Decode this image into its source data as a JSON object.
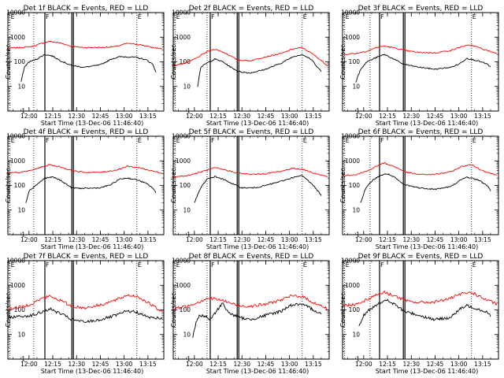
{
  "chart_data": {
    "type": "line",
    "y_scale": "log",
    "ylim": [
      1,
      10000
    ],
    "x_start": "2006-12-13T11:46:40",
    "xlim": [
      "11:46:40",
      "13:25:00"
    ],
    "x_ticks": [
      "12:00",
      "12:15",
      "12:30",
      "12:45",
      "13:00",
      "13:15"
    ],
    "y_ticks": [
      "1",
      "10",
      "100",
      "1000",
      "10000"
    ],
    "xlabel": "Start Time (13-Dec-06 11:46:40)",
    "ylabel": "Counts/sec",
    "colors": {
      "events": "#000000",
      "lld": "#ff0000"
    },
    "marker_labels": {
      "flare_start": "F",
      "eclipse": "E"
    },
    "panels": [
      {
        "title": "Det 1f BLACK = Events, RED = LLD",
        "marker_times": [
          "11:48",
          "12:03",
          "12:10",
          "12:27",
          "12:28",
          "13:08"
        ],
        "events": {
          "start": "11:55",
          "end": "13:20",
          "x": [
            "11:55",
            "11:57",
            "12:00",
            "12:05",
            "12:10",
            "12:15",
            "12:20",
            "12:27",
            "12:35",
            "12:45",
            "12:52",
            "12:57",
            "13:02",
            "13:08",
            "13:14",
            "13:18",
            "13:20"
          ],
          "y": [
            15,
            60,
            100,
            130,
            200,
            170,
            110,
            70,
            60,
            75,
            130,
            160,
            160,
            150,
            120,
            80,
            40
          ]
        },
        "lld": {
          "start": "11:47",
          "end": "13:24",
          "x": [
            "11:47",
            "11:55",
            "12:02",
            "12:08",
            "12:13",
            "12:20",
            "12:27",
            "12:35",
            "12:45",
            "12:55",
            "13:02",
            "13:10",
            "13:18",
            "13:24"
          ],
          "y": [
            360,
            380,
            420,
            560,
            680,
            580,
            420,
            380,
            380,
            420,
            560,
            500,
            380,
            340
          ]
        }
      },
      {
        "title": "Det 2f BLACK = Events, RED = LLD",
        "marker_times": [
          "11:48",
          "12:08",
          "12:10",
          "12:27",
          "12:28",
          "13:08"
        ],
        "events": {
          "start": "12:02",
          "end": "13:20",
          "x": [
            "12:02",
            "12:04",
            "12:08",
            "12:13",
            "12:18",
            "12:23",
            "12:28",
            "12:35",
            "12:45",
            "12:55",
            "13:02",
            "13:08",
            "13:14",
            "13:20"
          ],
          "y": [
            10,
            60,
            90,
            130,
            100,
            60,
            40,
            35,
            50,
            90,
            160,
            200,
            120,
            40
          ]
        },
        "lld": {
          "start": "11:47",
          "end": "13:24",
          "x": [
            "11:47",
            "11:55",
            "12:02",
            "12:08",
            "12:13",
            "12:20",
            "12:27",
            "12:35",
            "12:45",
            "12:55",
            "13:02",
            "13:08",
            "13:15",
            "13:24"
          ],
          "y": [
            70,
            90,
            150,
            260,
            330,
            220,
            120,
            110,
            160,
            220,
            330,
            380,
            200,
            70
          ]
        }
      },
      {
        "title": "Det 3f BLACK = Events, RED = LLD",
        "marker_times": [
          "11:48",
          "12:04",
          "12:10",
          "12:25",
          "12:26",
          "13:08"
        ],
        "events": {
          "start": "11:55",
          "end": "13:20",
          "x": [
            "11:55",
            "11:58",
            "12:02",
            "12:08",
            "12:13",
            "12:18",
            "12:25",
            "12:35",
            "12:45",
            "12:55",
            "13:00",
            "13:05",
            "13:12",
            "13:18",
            "13:20"
          ],
          "y": [
            15,
            50,
            100,
            150,
            200,
            140,
            80,
            60,
            50,
            60,
            80,
            140,
            110,
            80,
            60
          ]
        },
        "lld": {
          "start": "11:47",
          "end": "13:24",
          "x": [
            "11:47",
            "11:55",
            "12:02",
            "12:08",
            "12:13",
            "12:20",
            "12:27",
            "12:35",
            "12:45",
            "12:55",
            "13:02",
            "13:08",
            "13:15",
            "13:24"
          ],
          "y": [
            200,
            220,
            270,
            380,
            440,
            360,
            280,
            240,
            230,
            290,
            420,
            480,
            330,
            220
          ]
        }
      },
      {
        "title": "Det 4f BLACK = Events, RED = LLD",
        "marker_times": [
          "11:48",
          "12:03",
          "12:10",
          "12:27",
          "12:28",
          "13:08"
        ],
        "events": {
          "start": "11:58",
          "end": "13:20",
          "x": [
            "11:58",
            "12:00",
            "12:05",
            "12:10",
            "12:15",
            "12:20",
            "12:27",
            "12:35",
            "12:45",
            "12:52",
            "12:57",
            "13:02",
            "13:08",
            "13:14",
            "13:18",
            "13:20"
          ],
          "y": [
            20,
            60,
            110,
            200,
            220,
            160,
            80,
            75,
            80,
            110,
            180,
            200,
            170,
            120,
            80,
            50
          ]
        },
        "lld": {
          "start": "11:47",
          "end": "13:24",
          "x": [
            "11:47",
            "11:55",
            "12:02",
            "12:08",
            "12:13",
            "12:20",
            "12:27",
            "12:35",
            "12:45",
            "12:55",
            "13:02",
            "13:10",
            "13:18",
            "13:24"
          ],
          "y": [
            320,
            340,
            420,
            560,
            700,
            560,
            400,
            340,
            340,
            420,
            600,
            520,
            380,
            320
          ]
        }
      },
      {
        "title": "Det 5f BLACK = Events, RED = LLD",
        "marker_times": [
          "11:48",
          "12:08",
          "12:10",
          "12:27",
          "12:28",
          "13:08"
        ],
        "events": {
          "start": "12:00",
          "end": "13:20",
          "x": [
            "12:00",
            "12:04",
            "12:08",
            "12:13",
            "12:18",
            "12:25",
            "12:30",
            "12:38",
            "12:45",
            "12:55",
            "13:02",
            "13:08",
            "13:14",
            "13:20"
          ],
          "y": [
            20,
            80,
            180,
            230,
            180,
            110,
            80,
            80,
            100,
            150,
            210,
            250,
            120,
            40
          ]
        },
        "lld": {
          "start": "11:47",
          "end": "13:24",
          "x": [
            "11:47",
            "11:55",
            "12:02",
            "12:08",
            "12:13",
            "12:20",
            "12:27",
            "12:35",
            "12:45",
            "12:55",
            "13:02",
            "13:08",
            "13:15",
            "13:24"
          ],
          "y": [
            220,
            250,
            320,
            420,
            520,
            420,
            320,
            280,
            300,
            380,
            500,
            460,
            320,
            230
          ]
        }
      },
      {
        "title": "Det 6f BLACK = Events, RED = LLD",
        "marker_times": [
          "11:48",
          "12:04",
          "12:10",
          "12:25",
          "12:26",
          "13:08"
        ],
        "events": {
          "start": "11:58",
          "end": "13:20",
          "x": [
            "11:58",
            "12:01",
            "12:05",
            "12:10",
            "12:15",
            "12:20",
            "12:25",
            "12:35",
            "12:45",
            "12:55",
            "13:00",
            "13:05",
            "13:12",
            "13:18",
            "13:20"
          ],
          "y": [
            20,
            70,
            150,
            250,
            300,
            200,
            110,
            80,
            70,
            90,
            150,
            220,
            170,
            100,
            60
          ]
        },
        "lld": {
          "start": "11:47",
          "end": "13:24",
          "x": [
            "11:47",
            "11:55",
            "12:02",
            "12:08",
            "12:13",
            "12:20",
            "12:27",
            "12:35",
            "12:45",
            "12:55",
            "13:02",
            "13:08",
            "13:15",
            "13:24"
          ],
          "y": [
            250,
            280,
            380,
            600,
            820,
            560,
            340,
            280,
            280,
            360,
            600,
            700,
            400,
            260
          ]
        }
      },
      {
        "title": "Det 7f BLACK = Events, RED = LLD",
        "marker_times": [
          "11:48",
          "12:03",
          "12:10",
          "12:27",
          "12:28",
          "13:08"
        ],
        "events": {
          "start": "11:47",
          "end": "13:24",
          "x": [
            "11:47",
            "11:55",
            "12:02",
            "12:08",
            "12:13",
            "12:20",
            "12:27",
            "12:35",
            "12:45",
            "12:55",
            "13:02",
            "13:08",
            "13:15",
            "13:24"
          ],
          "y": [
            50,
            55,
            60,
            80,
            110,
            70,
            40,
            32,
            40,
            60,
            90,
            80,
            50,
            45
          ]
        },
        "lld": {
          "start": "11:47",
          "end": "13:24",
          "x": [
            "11:47",
            "11:55",
            "12:02",
            "12:08",
            "12:13",
            "12:20",
            "12:27",
            "12:35",
            "12:45",
            "12:55",
            "13:02",
            "13:08",
            "13:15",
            "13:24"
          ],
          "y": [
            110,
            130,
            180,
            290,
            360,
            240,
            140,
            120,
            160,
            250,
            400,
            360,
            200,
            80
          ]
        }
      },
      {
        "title": "Det 8f BLACK = Events, RED = LLD",
        "marker_times": [
          "11:48",
          "12:08",
          "12:10",
          "12:27",
          "12:28",
          "13:08"
        ],
        "events": {
          "start": "11:59",
          "end": "13:20",
          "x": [
            "11:59",
            "12:01",
            "12:03",
            "12:08",
            "12:10",
            "12:14",
            "12:18",
            "12:21",
            "12:28",
            "12:35",
            "12:45",
            "12:55",
            "13:00",
            "13:06",
            "13:12",
            "13:18",
            "13:20"
          ],
          "y": [
            8,
            30,
            60,
            50,
            40,
            90,
            200,
            80,
            50,
            40,
            60,
            90,
            150,
            170,
            130,
            80,
            70
          ]
        },
        "lld": {
          "start": "11:47",
          "end": "13:24",
          "x": [
            "11:47",
            "11:55",
            "12:02",
            "12:08",
            "12:13",
            "12:20",
            "12:27",
            "12:35",
            "12:45",
            "12:55",
            "13:02",
            "13:08",
            "13:15",
            "13:24"
          ],
          "y": [
            110,
            140,
            200,
            300,
            280,
            220,
            150,
            140,
            170,
            260,
            380,
            350,
            200,
            110
          ]
        }
      },
      {
        "title": "Det 9f BLACK = Events, RED = LLD",
        "marker_times": [
          "11:48",
          "12:04",
          "12:10",
          "12:25",
          "12:26",
          "13:08"
        ],
        "events": {
          "start": "11:57",
          "end": "13:20",
          "x": [
            "11:57",
            "12:00",
            "12:05",
            "12:10",
            "12:15",
            "12:20",
            "12:25",
            "12:35",
            "12:45",
            "12:55",
            "13:00",
            "13:05",
            "13:12",
            "13:18",
            "13:20"
          ],
          "y": [
            20,
            60,
            120,
            200,
            240,
            160,
            90,
            60,
            40,
            50,
            100,
            150,
            110,
            80,
            60
          ]
        },
        "lld": {
          "start": "11:47",
          "end": "13:24",
          "x": [
            "11:47",
            "11:55",
            "12:02",
            "12:08",
            "12:13",
            "12:20",
            "12:27",
            "12:35",
            "12:45",
            "12:55",
            "13:02",
            "13:08",
            "13:15",
            "13:24"
          ],
          "y": [
            150,
            170,
            260,
            420,
            520,
            360,
            230,
            200,
            210,
            300,
            450,
            520,
            300,
            170
          ]
        }
      }
    ]
  }
}
